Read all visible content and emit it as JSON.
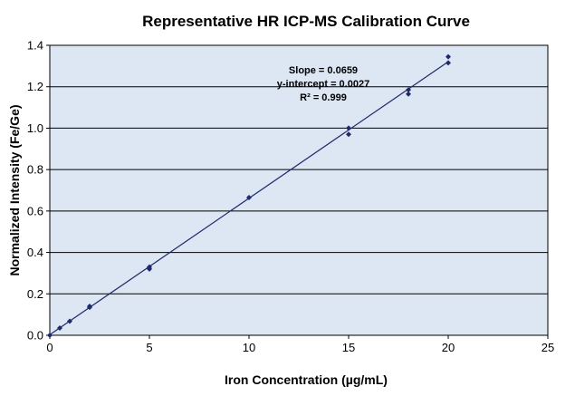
{
  "chart_data": {
    "type": "scatter",
    "title": "Representative HR ICP-MS Calibration Curve",
    "xlabel": "Iron Concentration  (µg/mL)",
    "ylabel": "Normalized Intensity (Fe/Ge)",
    "xlim": [
      0,
      25
    ],
    "ylim": [
      0,
      1.4
    ],
    "xticks": [
      "0",
      "5",
      "10",
      "15",
      "20",
      "25"
    ],
    "yticks": [
      "0.0",
      "0.2",
      "0.4",
      "0.6",
      "0.8",
      "1.0",
      "1.2",
      "1.4"
    ],
    "grid": "horizontal",
    "legend": "none",
    "series": [
      {
        "marker": "diamond",
        "color": "#1f2a6b",
        "points": [
          {
            "x": 0,
            "y": 0.0
          },
          {
            "x": 0.5,
            "y": 0.035
          },
          {
            "x": 1,
            "y": 0.068
          },
          {
            "x": 2,
            "y": 0.135
          },
          {
            "x": 2,
            "y": 0.14
          },
          {
            "x": 5,
            "y": 0.32
          },
          {
            "x": 5,
            "y": 0.33
          },
          {
            "x": 10,
            "y": 0.665
          },
          {
            "x": 15,
            "y": 0.97
          },
          {
            "x": 15,
            "y": 1.0
          },
          {
            "x": 18,
            "y": 1.165
          },
          {
            "x": 18,
            "y": 1.185
          },
          {
            "x": 20,
            "y": 1.315
          },
          {
            "x": 20,
            "y": 1.345
          }
        ]
      }
    ],
    "fit_line": {
      "slope": 0.0659,
      "intercept": 0.0027,
      "x_range": [
        0,
        20
      ],
      "color": "#1f2a6b"
    },
    "annotations": [
      {
        "text": "Slope = 0.0659"
      },
      {
        "text": "y-intercept  = 0.0027"
      },
      {
        "text": "R² = 0.999"
      }
    ],
    "colors": {
      "plot_bg": "#dde6f3",
      "grid": "#000000",
      "marker": "#1f2a6b"
    }
  }
}
